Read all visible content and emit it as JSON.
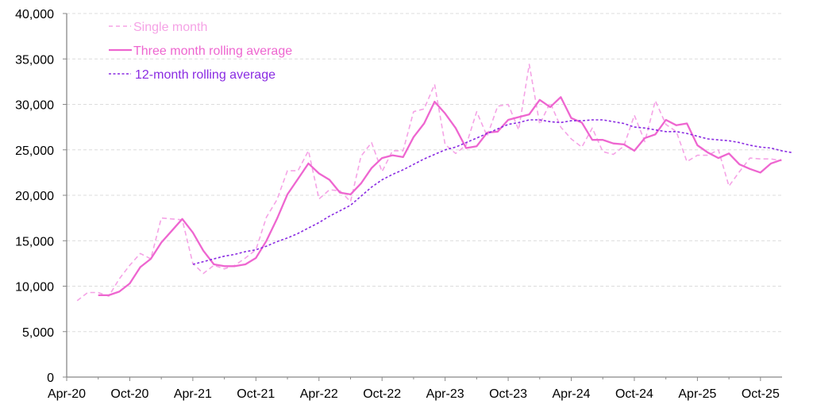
{
  "chart_data": {
    "type": "line",
    "title": "",
    "xlabel": "",
    "ylabel": "",
    "ylim": [
      0,
      40000
    ],
    "y_ticks": [
      0,
      5000,
      10000,
      15000,
      20000,
      25000,
      30000,
      35000,
      40000
    ],
    "y_tick_labels": [
      "0",
      "5,000",
      "10,000",
      "15,000",
      "20,000",
      "25,000",
      "30,000",
      "35,000",
      "40,000"
    ],
    "x_tick_labels": [
      "Apr-20",
      "Oct-20",
      "Apr-21",
      "Oct-21",
      "Apr-22",
      "Oct-22",
      "Apr-23",
      "Oct-23",
      "Apr-24",
      "Oct-24",
      "Apr-25",
      "Oct-25"
    ],
    "grid": true,
    "legend_position": "upper left",
    "x_start": "Apr-20",
    "x_end": "Dec-25",
    "series": [
      {
        "name": "Single month",
        "color": "#f5a3e6",
        "style": "dashed",
        "start": "May-20",
        "values": [
          8400,
          9300,
          9300,
          8900,
          10800,
          12300,
          13600,
          13000,
          17500,
          17400,
          17300,
          12500,
          11400,
          12300,
          11900,
          12300,
          13100,
          14000,
          17600,
          19500,
          22700,
          22700,
          24900,
          19600,
          20600,
          20500,
          19300,
          24300,
          25800,
          22600,
          24900,
          24900,
          29200,
          29500,
          32200,
          25600,
          24600,
          25500,
          29200,
          26500,
          29800,
          30000,
          27200,
          34400,
          27800,
          30200,
          27500,
          26200,
          25300,
          27400,
          24800,
          24500,
          25400,
          28800,
          25900,
          30400,
          27800,
          27000,
          23700,
          24400,
          24400,
          25000,
          21000,
          22600,
          24100,
          24000,
          24000,
          23800
        ]
      },
      {
        "name": "Three month rolling average",
        "color": "#ee66d0",
        "style": "solid",
        "start": "Jul-20",
        "values": [
          9000,
          9000,
          9400,
          10300,
          12100,
          13000,
          14800,
          16100,
          17400,
          15900,
          13900,
          12400,
          12200,
          12200,
          12400,
          13100,
          15000,
          17400,
          20100,
          21800,
          23500,
          22400,
          21700,
          20300,
          20100,
          21300,
          23000,
          24100,
          24400,
          24200,
          26400,
          27900,
          30300,
          29000,
          27400,
          25200,
          25400,
          26900,
          27000,
          28300,
          28600,
          28900,
          30500,
          29700,
          30800,
          28500,
          28000,
          26100,
          26100,
          25700,
          25600,
          24900,
          26300,
          26700,
          28300,
          27700,
          27900,
          25500,
          24700,
          24100,
          24600,
          23400,
          22900,
          22500,
          23500,
          23900
        ]
      },
      {
        "name": "12-month rolling average",
        "color": "#8a2be2",
        "style": "dotted",
        "start": "Apr-21",
        "values": [
          12400,
          12700,
          13000,
          13300,
          13500,
          13800,
          14000,
          14400,
          14900,
          15300,
          15800,
          16400,
          17000,
          17700,
          18300,
          18900,
          19900,
          20900,
          21700,
          22300,
          22800,
          23400,
          24000,
          24500,
          25000,
          25300,
          25800,
          26300,
          26800,
          27300,
          27800,
          28000,
          28300,
          28300,
          28100,
          28000,
          28200,
          28200,
          28300,
          28300,
          28100,
          27900,
          27500,
          27400,
          27200,
          27000,
          27000,
          26800,
          26500,
          26200,
          26100,
          26000,
          25800,
          25500,
          25300,
          25200,
          24900,
          24700
        ]
      }
    ]
  },
  "legend": {
    "items": [
      {
        "label": "Single month",
        "color": "#f5a3e6"
      },
      {
        "label": "Three month rolling average",
        "color": "#ee66d0"
      },
      {
        "label": "12-month rolling average",
        "color": "#8a2be2"
      }
    ]
  }
}
